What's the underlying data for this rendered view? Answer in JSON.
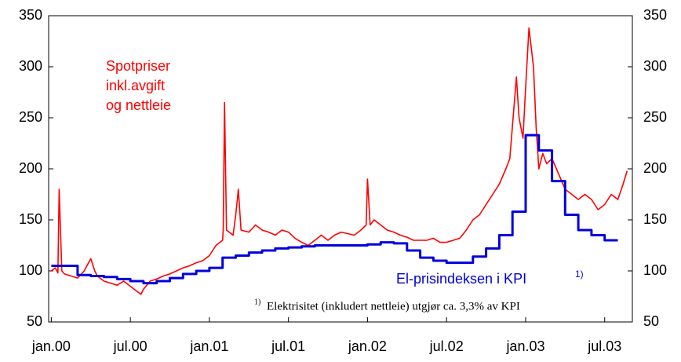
{
  "chart_data": {
    "type": "line",
    "annotations": {
      "spot": [
        "Spotpriser",
        "inkl.avgift",
        "og nettleie"
      ],
      "kpi": "El-prisindeksen i KPI",
      "kpi_sup": "1)",
      "note_sup": "1)",
      "note": "Elektrisitet (inkludert nettleie) utgjør ca. 3,3% av KPI"
    },
    "xlim": [
      -0.2,
      44.1
    ],
    "xticks": [
      {
        "value": 0,
        "label": "jan.00"
      },
      {
        "value": 6,
        "label": "jul.00"
      },
      {
        "value": 12,
        "label": "jan.01"
      },
      {
        "value": 18,
        "label": "jul.01"
      },
      {
        "value": 24,
        "label": "jan.02"
      },
      {
        "value": 30,
        "label": "jul.02"
      },
      {
        "value": 36,
        "label": "jan.03"
      },
      {
        "value": 42,
        "label": "jul.03"
      }
    ],
    "ylim": [
      50,
      350
    ],
    "yticks": [
      50,
      100,
      150,
      200,
      250,
      300,
      350
    ],
    "y2lim": [
      50,
      350
    ],
    "y2ticks": [
      50,
      100,
      150,
      200,
      250,
      300,
      350
    ],
    "series": [
      {
        "name": "Spotpriser inkl.avgift og nettleie",
        "color": "#ff0000",
        "style": "line",
        "x": [
          0,
          0.3,
          0.5,
          0.6,
          0.8,
          1,
          1.5,
          2,
          2.5,
          3,
          3.3,
          3.5,
          4,
          4.5,
          5,
          5.5,
          6,
          6.5,
          6.8,
          7,
          7.5,
          8,
          8.5,
          9,
          9.5,
          10,
          10.5,
          11,
          11.5,
          12,
          12.5,
          13,
          13.05,
          13.15,
          13.3,
          13.8,
          14,
          14.2,
          14.4,
          15,
          15.5,
          16,
          16.5,
          17,
          17.5,
          18,
          18.5,
          19,
          19.5,
          20,
          20.5,
          21,
          21.5,
          22,
          23,
          23.5,
          23.9,
          24,
          24.2,
          24.5,
          25,
          25.5,
          26,
          26.5,
          27,
          27.5,
          28,
          28.5,
          29,
          29.5,
          30,
          30.5,
          31,
          31.5,
          32,
          32.5,
          33,
          33.5,
          34,
          34.5,
          34.8,
          35.3,
          35.5,
          35.8,
          36,
          36.25,
          36.6,
          36.8,
          37,
          37.3,
          37.6,
          38,
          38.5,
          39,
          39.5,
          40,
          40.5,
          41,
          41.5,
          42,
          42.5,
          43,
          43.4,
          43.7
        ],
        "values": [
          100,
          103,
          98,
          180,
          100,
          97,
          95,
          93,
          100,
          112,
          100,
          95,
          90,
          88,
          86,
          90,
          85,
          80,
          77,
          82,
          90,
          92,
          95,
          97,
          100,
          103,
          105,
          108,
          110,
          115,
          125,
          130,
          140,
          265,
          140,
          135,
          155,
          180,
          140,
          138,
          145,
          140,
          138,
          135,
          140,
          138,
          132,
          128,
          125,
          130,
          135,
          130,
          135,
          138,
          135,
          140,
          145,
          190,
          145,
          150,
          145,
          140,
          138,
          135,
          133,
          130,
          130,
          130,
          132,
          128,
          128,
          130,
          132,
          140,
          150,
          155,
          165,
          175,
          185,
          200,
          210,
          290,
          250,
          230,
          280,
          338,
          300,
          240,
          200,
          215,
          205,
          210,
          195,
          180,
          175,
          170,
          175,
          170,
          160,
          165,
          175,
          170,
          185,
          198
        ]
      },
      {
        "name": "El-prisindeksen i KPI",
        "color": "#0000dd",
        "style": "step",
        "x": [
          0,
          1,
          2,
          3,
          4,
          5,
          6,
          7,
          8,
          9,
          10,
          11,
          12,
          13,
          14,
          15,
          16,
          17,
          18,
          19,
          20,
          21,
          22,
          23,
          24,
          25,
          26,
          27,
          28,
          29,
          30,
          31,
          32,
          33,
          34,
          35,
          36,
          37,
          38,
          39,
          40,
          41,
          42
        ],
        "values": [
          105,
          105,
          96,
          95,
          94,
          92,
          90,
          88,
          90,
          93,
          97,
          100,
          103,
          113,
          115,
          118,
          120,
          122,
          123,
          124,
          125,
          125,
          125,
          125,
          126,
          128,
          127,
          120,
          113,
          110,
          108,
          108,
          114,
          122,
          135,
          158,
          233,
          218,
          188,
          155,
          140,
          135,
          130
        ]
      }
    ]
  }
}
